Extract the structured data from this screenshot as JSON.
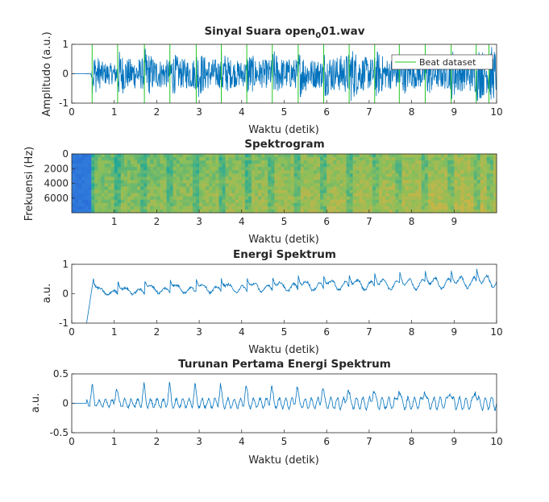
{
  "colors": {
    "signal": "#0072BD",
    "beat": "#22C522",
    "axis": "#262626",
    "spec_low": "#2A6FD8",
    "spec_mid": "#1FA89A",
    "spec_high": "#E0B040"
  },
  "chart_data": [
    {
      "type": "line",
      "title_main": "Sinyal Suara open",
      "title_sub": "0",
      "title_tail": "01.wav",
      "xlabel": "Waktu (detik)",
      "ylabel": "Amplitudo (a.u.)",
      "xlim": [
        0,
        10
      ],
      "ylim": [
        -1,
        1
      ],
      "xticks": [
        "0",
        "1",
        "2",
        "3",
        "4",
        "5",
        "6",
        "7",
        "8",
        "9",
        "10"
      ],
      "yticks": [
        "-1",
        "0",
        "1"
      ],
      "legend": "top-right",
      "series": [
        {
          "name": "Beat dataset",
          "x": [
            0.48,
            1.08,
            1.71,
            2.31,
            2.93,
            3.52,
            4.12,
            4.72,
            5.33,
            5.93,
            6.53,
            7.13,
            7.71,
            8.32,
            8.93,
            9.52,
            9.82
          ]
        }
      ],
      "envelope": {
        "x": [
          0,
          0.45,
          0.5,
          1.0,
          1.1,
          1.7,
          2.3,
          3.0,
          3.5,
          4.0,
          5.0,
          6.0,
          6.5,
          7.0,
          8.0,
          9.0,
          9.5,
          10.0
        ],
        "y": [
          0.0,
          0.01,
          0.45,
          0.35,
          0.5,
          0.55,
          0.48,
          0.55,
          0.5,
          0.45,
          0.52,
          0.5,
          0.7,
          0.55,
          0.5,
          0.55,
          0.65,
          0.7
        ]
      }
    },
    {
      "type": "heatmap",
      "title": "Spektrogram",
      "xlabel": "Waktu (detik)",
      "ylabel": "Frekuensi (Hz)",
      "xlim": [
        0,
        10
      ],
      "ylim": [
        0,
        8000
      ],
      "xticks": [
        "1",
        "2",
        "3",
        "4",
        "5",
        "6",
        "7",
        "8",
        "9"
      ],
      "yticks": [
        "0",
        "2000",
        "4000",
        "6000"
      ]
    },
    {
      "type": "line",
      "title": "Energi Spektrum",
      "xlabel": "Waktu (detik)",
      "ylabel": "a.u.",
      "xlim": [
        0,
        10
      ],
      "ylim": [
        -1,
        1
      ],
      "xticks": [
        "0",
        "1",
        "2",
        "3",
        "4",
        "5",
        "6",
        "7",
        "8",
        "9",
        "10"
      ],
      "yticks": [
        "-1",
        "0",
        "1"
      ],
      "onset_start": 0.35,
      "peaks": [
        0.52,
        1.08,
        1.72,
        2.32,
        2.93,
        3.52,
        4.13,
        4.73,
        5.33,
        5.93,
        6.53,
        7.13,
        7.72,
        8.32,
        8.93,
        9.53
      ],
      "trend": {
        "x": [
          0.5,
          2.0,
          4.0,
          6.0,
          8.0,
          10.0
        ],
        "y": [
          0.15,
          0.25,
          0.3,
          0.4,
          0.45,
          0.55
        ]
      }
    },
    {
      "type": "line",
      "title": "Turunan Pertama Energi Spektrum",
      "xlabel": "Waktu (detik)",
      "ylabel": "a.u.",
      "xlim": [
        0,
        10
      ],
      "ylim": [
        -0.5,
        0.5
      ],
      "xticks": [
        "0",
        "1",
        "2",
        "3",
        "4",
        "5",
        "6",
        "7",
        "8",
        "9",
        "10"
      ],
      "yticks": [
        "-0.5",
        "0",
        "0.5"
      ],
      "onset_start": 0.35,
      "peaks": [
        0.48,
        1.05,
        1.7,
        2.3,
        2.9,
        3.5,
        4.1,
        4.7,
        5.3,
        5.9,
        6.5,
        7.1,
        7.7,
        8.3,
        8.9,
        9.5
      ],
      "amplitude": 0.2
    }
  ]
}
